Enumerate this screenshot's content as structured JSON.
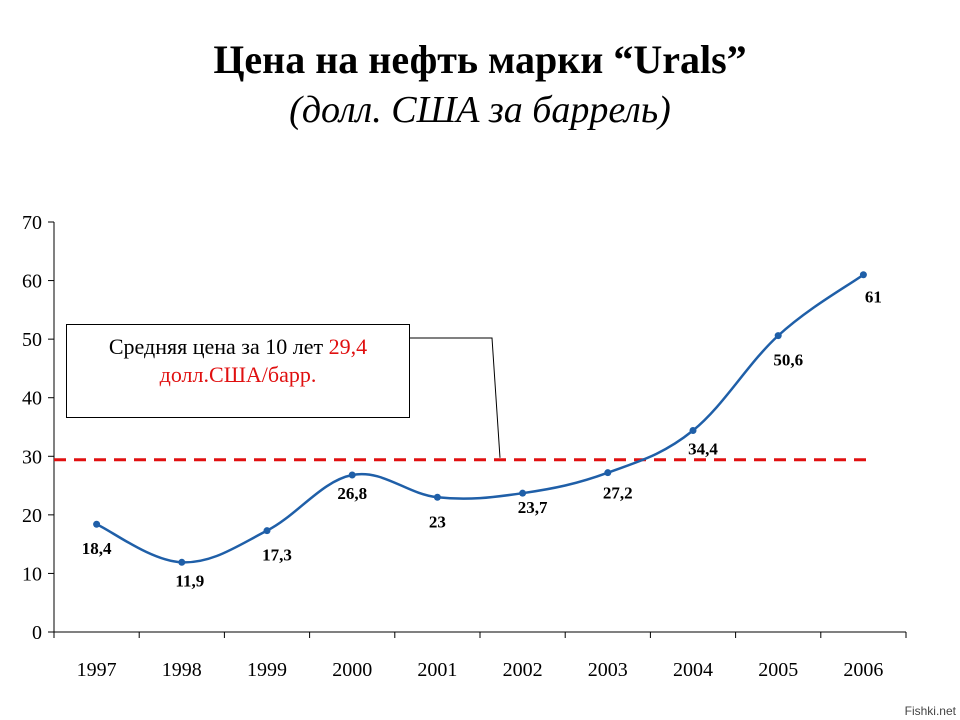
{
  "title": "Цена на нефть марки “Urals”",
  "subtitle": "(долл. США за баррель)",
  "annotation": {
    "text_black": "Средняя цена за 10 лет",
    "text_red_value": "29,4",
    "text_red_unit": "долл.США/барр."
  },
  "watermark": "Fishki.net",
  "chart_data": {
    "type": "line",
    "title": "Цена на нефть марки “Urals”",
    "subtitle": "(долл. США за баррель)",
    "x": [
      "1997",
      "1998",
      "1999",
      "2000",
      "2001",
      "2002",
      "2003",
      "2004",
      "2005",
      "2006"
    ],
    "series": [
      {
        "values": [
          18.4,
          11.9,
          17.3,
          26.8,
          23,
          23.7,
          27.2,
          34.4,
          50.6,
          61
        ],
        "labels": [
          "18,4",
          "11,9",
          "17,3",
          "26,8",
          "23",
          "23,7",
          "27,2",
          "34,4",
          "50,6",
          "61"
        ],
        "color": "#1f5fa8"
      }
    ],
    "reference_line": {
      "value": 29.4,
      "color": "#e01010",
      "style": "dashed"
    },
    "yticks": [
      "0",
      "10",
      "20",
      "30",
      "40",
      "50",
      "60",
      "70"
    ],
    "ylim": [
      0,
      70
    ],
    "grid": false,
    "legend": "none"
  }
}
